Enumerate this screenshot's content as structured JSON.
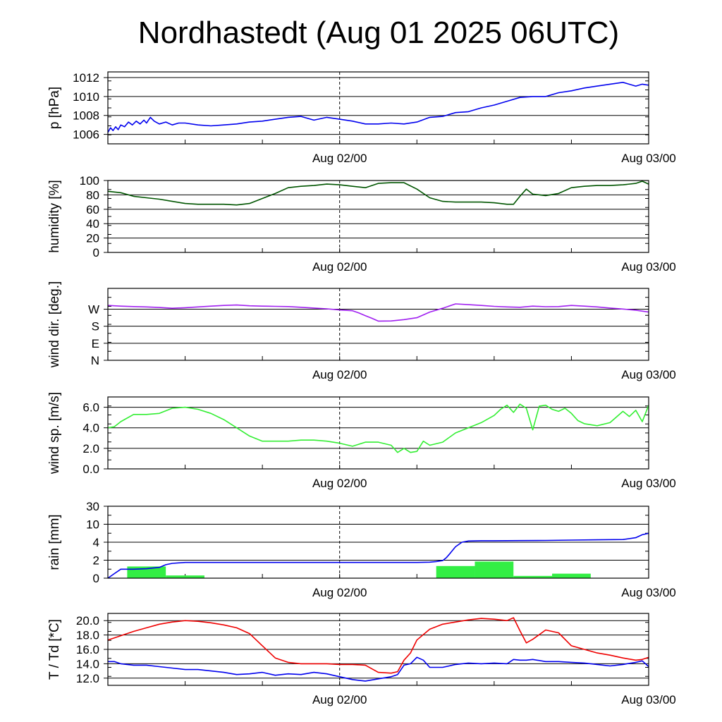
{
  "title": "Nordhastedt (Aug 01 2025 06UTC)",
  "colors": {
    "pressure": "#0000ee",
    "humidity": "#005500",
    "wind_dir": "#a020f0",
    "wind_speed": "#33ee33",
    "rain_bars": "#33ee44",
    "rain_line": "#0000ee",
    "temperature": "#ee0000",
    "dewpoint": "#0000ee",
    "grid": "#000000"
  },
  "chart_data": [
    {
      "type": "line",
      "name": "pressure",
      "ylabel": "p [hPa]",
      "x_range": [
        0,
        42
      ],
      "ylim": [
        1005,
        1012.6
      ],
      "yticks": [
        1006,
        1008,
        1010,
        1012
      ],
      "ytick_labels": [
        "1006",
        "1008",
        "1010",
        "1012"
      ],
      "xtick_labels": [
        {
          "x": 18,
          "label": "Aug 02/00"
        },
        {
          "x": 42,
          "label": "Aug 03/00"
        }
      ],
      "series": [
        {
          "key": "pressure",
          "x": [
            0,
            0.2,
            0.4,
            0.6,
            0.8,
            1,
            1.3,
            1.6,
            1.9,
            2.2,
            2.5,
            2.8,
            3,
            3.3,
            3.6,
            4,
            4.5,
            5,
            5.5,
            6,
            7,
            8,
            9,
            10,
            11,
            12,
            13,
            14,
            15,
            16,
            17,
            18,
            19,
            20,
            21,
            22,
            23,
            24,
            25,
            26,
            27,
            28,
            29,
            30,
            31,
            32,
            33,
            34,
            35,
            36,
            37,
            38,
            39,
            40,
            41,
            41.5,
            42
          ],
          "y": [
            1006.2,
            1006.7,
            1006.4,
            1006.8,
            1006.5,
            1007.0,
            1006.8,
            1007.3,
            1007.0,
            1007.4,
            1007.1,
            1007.5,
            1007.2,
            1007.8,
            1007.4,
            1007.1,
            1007.3,
            1007.0,
            1007.2,
            1007.2,
            1007.0,
            1006.9,
            1007.0,
            1007.1,
            1007.3,
            1007.4,
            1007.6,
            1007.8,
            1007.9,
            1007.5,
            1007.8,
            1007.6,
            1007.4,
            1007.1,
            1007.1,
            1007.2,
            1007.1,
            1007.3,
            1007.8,
            1007.9,
            1008.3,
            1008.4,
            1008.8,
            1009.1,
            1009.5,
            1009.9,
            1010.0,
            1010.0,
            1010.4,
            1010.6,
            1010.9,
            1011.1,
            1011.3,
            1011.5,
            1011.1,
            1011.3,
            1011.2
          ]
        }
      ]
    },
    {
      "type": "line",
      "name": "humidity",
      "ylabel": "humidity [%]",
      "x_range": [
        0,
        42
      ],
      "ylim": [
        0,
        100
      ],
      "yticks": [
        0,
        20,
        40,
        60,
        80,
        100
      ],
      "ytick_labels": [
        "0",
        "20",
        "40",
        "60",
        "80",
        "100"
      ],
      "xtick_labels": [
        {
          "x": 18,
          "label": "Aug 02/00"
        },
        {
          "x": 42,
          "label": "Aug 03/00"
        }
      ],
      "series": [
        {
          "key": "humidity",
          "x": [
            0,
            0.5,
            1,
            2,
            3,
            4,
            5,
            6,
            7,
            8,
            9,
            10,
            11,
            12,
            13,
            14,
            15,
            16,
            17,
            18,
            19,
            20,
            21,
            22,
            23,
            24,
            25,
            26,
            27,
            28,
            29,
            30,
            31,
            31.5,
            32,
            32.5,
            33,
            34,
            35,
            36,
            37,
            38,
            39,
            40,
            41,
            41.5,
            42
          ],
          "y": [
            85,
            84,
            83,
            78,
            76,
            74,
            71,
            68,
            67,
            67,
            67,
            66,
            68,
            75,
            82,
            90,
            92,
            93,
            95,
            94,
            92,
            90,
            96,
            97,
            97,
            88,
            76,
            71,
            70,
            70,
            70,
            69,
            67,
            67,
            78,
            88,
            81,
            79,
            82,
            90,
            92,
            93,
            93,
            94,
            96,
            99,
            95
          ]
        }
      ]
    },
    {
      "type": "line",
      "name": "wind_direction",
      "ylabel": "wind dir. [deg.]",
      "x_range": [
        0,
        42
      ],
      "ylim": [
        0,
        380
      ],
      "yticks": [
        0,
        90,
        180,
        270
      ],
      "ytick_labels": [
        "N",
        "E",
        "S",
        "W"
      ],
      "xtick_labels": [
        {
          "x": 18,
          "label": "Aug 02/00"
        },
        {
          "x": 42,
          "label": "Aug 03/00"
        }
      ],
      "series": [
        {
          "key": "wind_dir",
          "x": [
            0,
            1,
            2,
            3,
            4,
            5,
            6,
            7,
            8,
            9,
            10,
            11,
            12,
            13,
            14,
            15,
            16,
            17,
            18,
            19,
            19.5,
            20,
            20.5,
            21,
            22,
            23,
            24,
            25,
            26,
            27,
            28,
            29,
            30,
            31,
            32,
            33,
            34,
            35,
            36,
            37,
            38,
            39,
            40,
            41,
            42
          ],
          "y": [
            290,
            286,
            284,
            282,
            279,
            275,
            278,
            282,
            286,
            290,
            292,
            288,
            286,
            285,
            284,
            280,
            276,
            272,
            266,
            262,
            250,
            236,
            222,
            207,
            208,
            215,
            225,
            255,
            275,
            298,
            294,
            290,
            285,
            282,
            280,
            286,
            283,
            284,
            290,
            286,
            282,
            276,
            271,
            265,
            255
          ]
        }
      ]
    },
    {
      "type": "line",
      "name": "wind_speed",
      "ylabel": "wind sp. [m/s]",
      "x_range": [
        0,
        42
      ],
      "ylim": [
        0,
        7
      ],
      "yticks": [
        0,
        2,
        4,
        6
      ],
      "ytick_labels": [
        "0.0",
        "2.0",
        "4.0",
        "6.0"
      ],
      "xtick_labels": [
        {
          "x": 18,
          "label": "Aug 02/00"
        },
        {
          "x": 42,
          "label": "Aug 03/00"
        }
      ],
      "series": [
        {
          "key": "wind_speed",
          "x": [
            0,
            0.5,
            1,
            2,
            3,
            4,
            5,
            6,
            7,
            8,
            9,
            10,
            11,
            12,
            13,
            14,
            15,
            16,
            17,
            18,
            19,
            20,
            21,
            22,
            22.5,
            23,
            23.5,
            24,
            24.5,
            25,
            26,
            27,
            28,
            29,
            30,
            30.5,
            31,
            31.5,
            32,
            32.5,
            33,
            33.5,
            34,
            34.5,
            35,
            35.5,
            36,
            36.5,
            37,
            38,
            39,
            40,
            40.5,
            41,
            41.5,
            42
          ],
          "y": [
            4.0,
            4.1,
            4.6,
            5.3,
            5.3,
            5.4,
            5.9,
            6.0,
            5.8,
            5.4,
            4.8,
            4.0,
            3.2,
            2.7,
            2.7,
            2.7,
            2.8,
            2.8,
            2.7,
            2.5,
            2.2,
            2.6,
            2.6,
            2.3,
            1.6,
            2.0,
            1.6,
            1.7,
            2.7,
            2.3,
            2.6,
            3.5,
            4.0,
            4.5,
            5.2,
            5.8,
            6.2,
            5.5,
            6.3,
            5.9,
            3.8,
            6.1,
            6.2,
            5.8,
            5.6,
            5.9,
            5.4,
            4.7,
            4.4,
            4.2,
            4.5,
            5.6,
            5.1,
            5.7,
            4.6,
            6.2
          ]
        }
      ]
    },
    {
      "type": "bar",
      "name": "rain",
      "ylabel": "rain [mm]",
      "x_range": [
        0,
        42
      ],
      "scale": "piecewise",
      "scale_map": [
        [
          0,
          0
        ],
        [
          2,
          1
        ],
        [
          4,
          2
        ],
        [
          10,
          3
        ],
        [
          30,
          4
        ]
      ],
      "yticks": [
        0,
        2,
        4,
        10,
        30
      ],
      "ytick_labels": [
        "0",
        "2",
        "4",
        "10",
        "30"
      ],
      "xtick_labels": [
        {
          "x": 18,
          "label": "Aug 02/00"
        },
        {
          "x": 42,
          "label": "Aug 03/00"
        }
      ],
      "bars": [
        {
          "x0": 1.5,
          "x1": 4.5,
          "value": 1.3
        },
        {
          "x0": 4.5,
          "x1": 7.5,
          "value": 0.3
        },
        {
          "x0": 25.5,
          "x1": 28.5,
          "value": 1.35
        },
        {
          "x0": 28.5,
          "x1": 31.5,
          "value": 1.85
        },
        {
          "x0": 31.5,
          "x1": 34.5,
          "value": 0.25
        },
        {
          "x0": 34.5,
          "x1": 37.5,
          "value": 0.5
        }
      ],
      "series": [
        {
          "key": "rain_line",
          "x": [
            0,
            0.5,
            1,
            1.5,
            2,
            3,
            4,
            4.5,
            5,
            5.5,
            6,
            8,
            10,
            12,
            14,
            16,
            18,
            20,
            22,
            24,
            25,
            25.5,
            26,
            26.3,
            26.6,
            27,
            27.5,
            28,
            29,
            30,
            32,
            34,
            36,
            38,
            40,
            41,
            41.5,
            42
          ],
          "y": [
            0,
            0.5,
            1.0,
            1.0,
            1.0,
            1.05,
            1.2,
            1.5,
            1.65,
            1.7,
            1.75,
            1.75,
            1.75,
            1.75,
            1.75,
            1.75,
            1.75,
            1.75,
            1.75,
            1.75,
            1.78,
            1.85,
            1.95,
            2.3,
            2.8,
            3.5,
            4.0,
            4.4,
            4.5,
            4.5,
            4.55,
            4.6,
            4.7,
            4.8,
            4.9,
            5.5,
            6.5,
            7.0
          ]
        }
      ]
    },
    {
      "type": "line",
      "name": "temperature",
      "ylabel": "T / Td [*C]",
      "x_range": [
        0,
        42
      ],
      "ylim": [
        11,
        21
      ],
      "yticks": [
        12,
        14,
        16,
        18,
        20
      ],
      "ytick_labels": [
        "12.0",
        "14.0",
        "16.0",
        "18.0",
        "20.0"
      ],
      "xtick_labels": [
        {
          "x": 18,
          "label": "Aug 02/00"
        },
        {
          "x": 42,
          "label": "Aug 03/00"
        }
      ],
      "series": [
        {
          "key": "temperature",
          "x": [
            0,
            0.5,
            1,
            2,
            3,
            4,
            5,
            6,
            7,
            8,
            9,
            10,
            11,
            12,
            13,
            14,
            15,
            16,
            17,
            18,
            19,
            20,
            21,
            22,
            22.5,
            23,
            23.5,
            24,
            25,
            26,
            27,
            28,
            29,
            30,
            31,
            31.5,
            32,
            32.5,
            33,
            34,
            35,
            36,
            37,
            38,
            39,
            40,
            41,
            41.5,
            42
          ],
          "y": [
            17.3,
            17.6,
            17.9,
            18.5,
            19.0,
            19.5,
            19.8,
            20.0,
            19.9,
            19.7,
            19.4,
            19.0,
            18.2,
            16.5,
            14.8,
            14.2,
            14.0,
            14.0,
            14.0,
            13.9,
            13.9,
            13.8,
            12.8,
            12.7,
            12.9,
            14.5,
            15.5,
            17.3,
            18.8,
            19.5,
            19.8,
            20.1,
            20.3,
            20.2,
            20.0,
            20.4,
            18.6,
            16.9,
            17.4,
            18.7,
            18.3,
            16.5,
            16.0,
            15.5,
            15.2,
            14.8,
            14.5,
            14.6,
            14.9
          ]
        },
        {
          "key": "dewpoint",
          "x": [
            0,
            0.5,
            1,
            2,
            3,
            4,
            5,
            6,
            7,
            8,
            9,
            10,
            11,
            12,
            13,
            14,
            15,
            16,
            17,
            18,
            19,
            19.5,
            20,
            21,
            22,
            22.5,
            23,
            23.5,
            24,
            24.5,
            25,
            26,
            27,
            28,
            29,
            30,
            31,
            31.5,
            32,
            32.5,
            33,
            34,
            35,
            36,
            37,
            38,
            39,
            40,
            41,
            41.5,
            42
          ],
          "y": [
            14.3,
            14.3,
            14.0,
            13.8,
            13.8,
            13.6,
            13.4,
            13.2,
            13.2,
            13.0,
            12.8,
            12.5,
            12.6,
            12.8,
            12.4,
            12.6,
            12.5,
            12.8,
            12.6,
            12.2,
            11.8,
            11.7,
            11.6,
            11.9,
            12.2,
            12.5,
            13.8,
            14.0,
            14.9,
            14.5,
            13.5,
            13.5,
            13.9,
            14.1,
            14.0,
            14.1,
            14.0,
            14.6,
            14.5,
            14.5,
            14.6,
            14.3,
            14.3,
            14.2,
            14.1,
            13.9,
            13.7,
            13.9,
            14.2,
            14.4,
            13.6
          ]
        }
      ]
    }
  ]
}
